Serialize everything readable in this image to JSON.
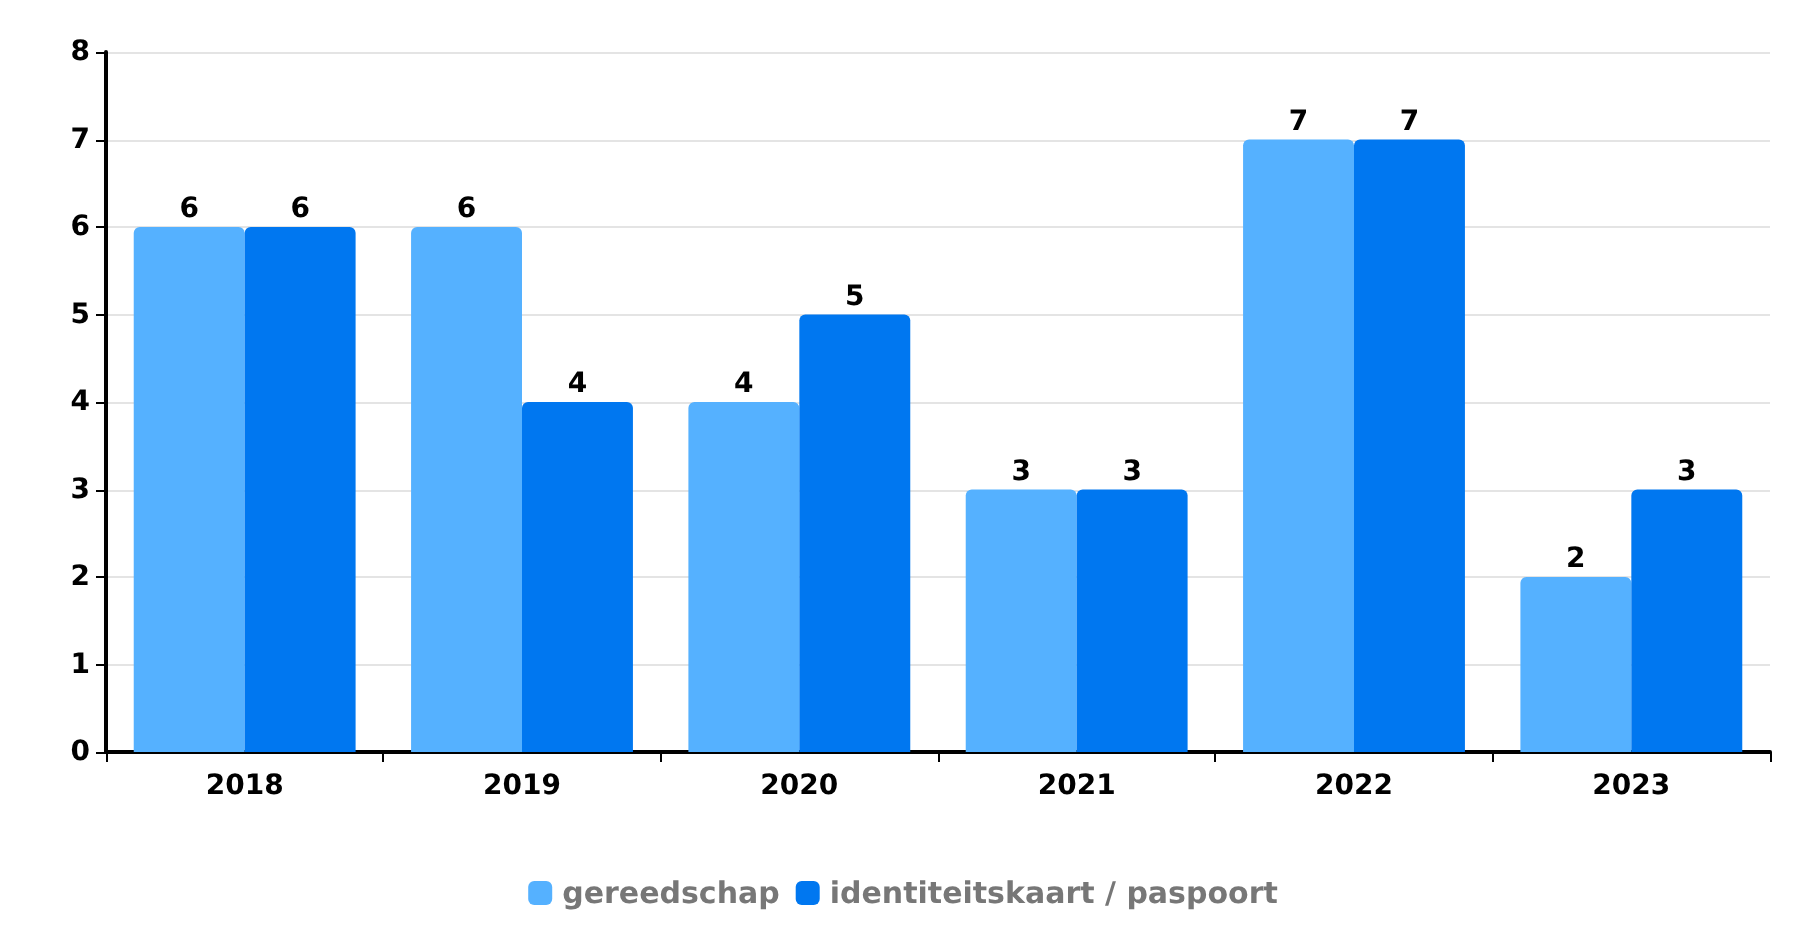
{
  "chart_data": {
    "type": "bar",
    "categories": [
      "2018",
      "2019",
      "2020",
      "2021",
      "2022",
      "2023"
    ],
    "series": [
      {
        "name": "gereedschap",
        "color": "#55b1ff",
        "values": [
          6,
          6,
          4,
          3,
          7,
          2
        ]
      },
      {
        "name": "identiteitskaart / paspoort",
        "color": "#0077f0",
        "values": [
          6,
          4,
          5,
          3,
          7,
          3
        ]
      }
    ],
    "ylim": [
      0,
      8
    ],
    "yticks": [
      0,
      1,
      2,
      3,
      4,
      5,
      6,
      7,
      8
    ],
    "grid": "y",
    "legend": "bottom",
    "data_labels": true
  }
}
